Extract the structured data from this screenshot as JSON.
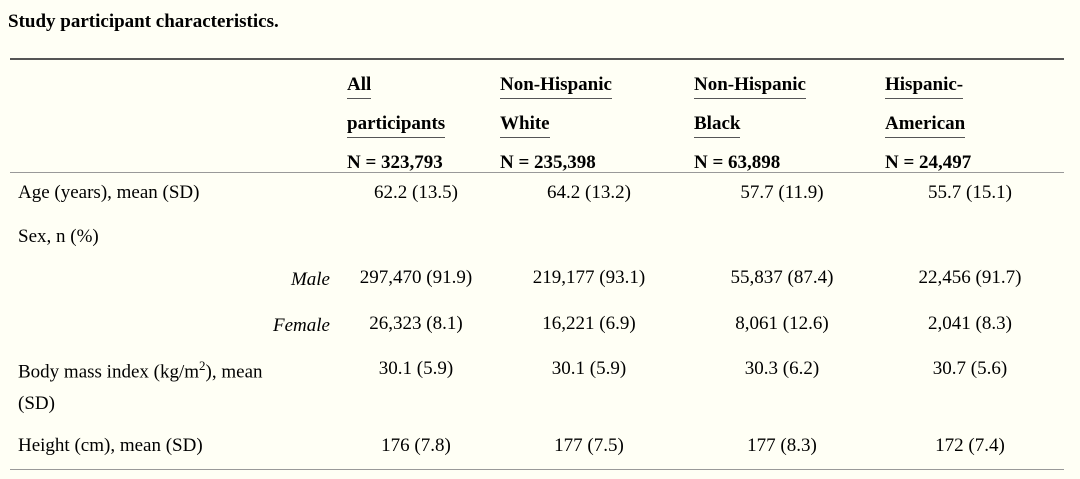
{
  "caption": "Study participant characteristics.",
  "columns": [
    {
      "line1": "All",
      "line2": "participants",
      "line3": "N = 323,793"
    },
    {
      "line1": "Non-Hispanic",
      "line2": "White",
      "line3": "N = 235,398"
    },
    {
      "line1": "Non-Hispanic",
      "line2": "Black",
      "line3": "N = 63,898"
    },
    {
      "line1": "Hispanic-",
      "line2": "American",
      "line3": "N = 24,497"
    }
  ],
  "rows": {
    "age": {
      "label": "Age (years), mean (SD)",
      "values": [
        "62.2 (13.5)",
        "64.2 (13.2)",
        "57.7 (11.9)",
        "55.7 (15.1)"
      ]
    },
    "sex": {
      "label": "Sex, n (%)"
    },
    "male": {
      "label": "Male",
      "values": [
        "297,470 (91.9)",
        "219,177 (93.1)",
        "55,837 (87.4)",
        "22,456 (91.7)"
      ]
    },
    "female": {
      "label": "Female",
      "values": [
        "26,323 (8.1)",
        "16,221 (6.9)",
        "8,061 (12.6)",
        "2,041 (8.3)"
      ]
    },
    "bmi": {
      "label_pre": "Body mass index (kg/m",
      "label_sup": "2",
      "label_post": "), mean",
      "label_line2": "(SD)",
      "values": [
        "30.1 (5.9)",
        "30.1 (5.9)",
        "30.3 (6.2)",
        "30.7 (5.6)"
      ]
    },
    "height": {
      "label": "Height (cm), mean (SD)",
      "values": [
        "176 (7.8)",
        "177 (7.5)",
        "177 (8.3)",
        "172 (7.4)"
      ]
    }
  }
}
